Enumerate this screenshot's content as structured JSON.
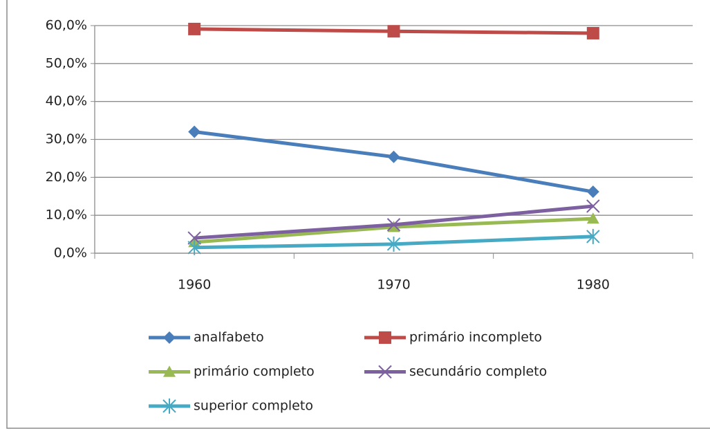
{
  "chart_data": {
    "type": "line",
    "categories": [
      "1960",
      "1970",
      "1980"
    ],
    "ylim": [
      0,
      60
    ],
    "yticks": [
      {
        "value": 0,
        "label": "0,0%"
      },
      {
        "value": 10,
        "label": "10,0%"
      },
      {
        "value": 20,
        "label": "20,0%"
      },
      {
        "value": 30,
        "label": "30,0%"
      },
      {
        "value": 40,
        "label": "40,0%"
      },
      {
        "value": 50,
        "label": "50,0%"
      },
      {
        "value": 60,
        "label": "60,0%"
      }
    ],
    "grid": true,
    "legend": "bottom",
    "series": [
      {
        "name": "analfabeto",
        "color": "#4a7ebb",
        "marker": "diamond",
        "values": [
          32.0,
          25.4,
          16.2
        ]
      },
      {
        "name": "primário incompleto",
        "color": "#be4b48",
        "marker": "square",
        "values": [
          59.1,
          58.5,
          58.0
        ]
      },
      {
        "name": "primário completo",
        "color": "#98b954",
        "marker": "triangle",
        "values": [
          2.9,
          6.9,
          9.1
        ]
      },
      {
        "name": "secundário completo",
        "color": "#7d60a0",
        "marker": "x",
        "values": [
          4.0,
          7.5,
          12.4
        ]
      },
      {
        "name": "superior completo",
        "color": "#46aac5",
        "marker": "star",
        "values": [
          1.5,
          2.4,
          4.4
        ]
      }
    ]
  }
}
